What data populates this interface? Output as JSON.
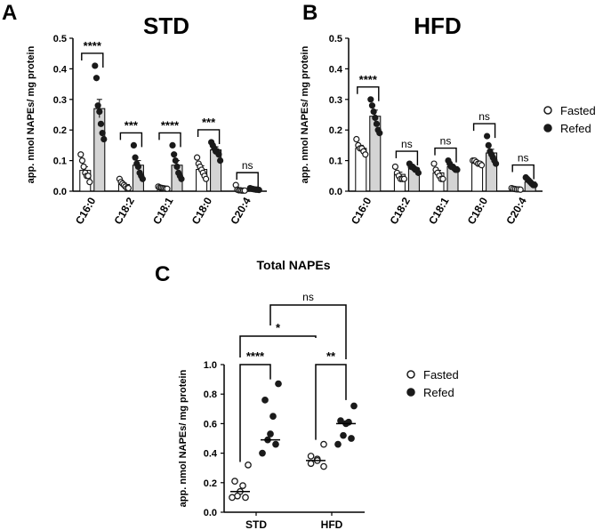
{
  "panels": [
    {
      "letter": "A"
    },
    {
      "letter": "B"
    },
    {
      "letter": "C"
    }
  ],
  "chart_data": [
    {
      "type": "bar",
      "panel": "A",
      "title": "STD",
      "ylabel": "app. nmol NAPEs/ mg protein",
      "xlabel": "",
      "ylim": [
        0,
        0.5
      ],
      "yticks": [
        "0.0",
        "0.1",
        "0.2",
        "0.3",
        "0.4",
        "0.5"
      ],
      "categories": [
        "C16:0",
        "C18:2",
        "C18:1",
        "C18:0",
        "C20:4"
      ],
      "series": [
        {
          "name": "Fasted",
          "values": [
            0.068,
            0.022,
            0.011,
            0.071,
            0.004
          ],
          "sem": [
            0.012,
            0.005,
            0.002,
            0.012,
            0.001
          ],
          "points": [
            [
              0.12,
              0.1,
              0.08,
              0.06,
              0.05,
              0.05,
              0.03
            ],
            [
              0.04,
              0.03,
              0.025,
              0.02,
              0.015,
              0.01,
              0.01
            ],
            [
              0.015,
              0.012,
              0.011,
              0.01,
              0.009,
              0.008,
              0.008
            ],
            [
              0.11,
              0.09,
              0.08,
              0.07,
              0.06,
              0.05,
              0.04
            ],
            [
              0.02,
              0.005,
              0.003,
              0.003,
              0.002,
              0.002,
              0.002
            ]
          ]
        },
        {
          "name": "Refed",
          "values": [
            0.27,
            0.085,
            0.085,
            0.135,
            0.006
          ],
          "sem": [
            0.03,
            0.015,
            0.015,
            0.01,
            0.001
          ],
          "points": [
            [
              0.41,
              0.37,
              0.28,
              0.26,
              0.22,
              0.19,
              0.17
            ],
            [
              0.15,
              0.11,
              0.09,
              0.08,
              0.06,
              0.05,
              0.04
            ],
            [
              0.15,
              0.12,
              0.1,
              0.08,
              0.06,
              0.05,
              0.04
            ],
            [
              0.16,
              0.15,
              0.14,
              0.13,
              0.13,
              0.12,
              0.1
            ],
            [
              0.01,
              0.008,
              0.007,
              0.006,
              0.005,
              0.005,
              0.004
            ]
          ]
        }
      ],
      "significance": [
        "****",
        "***",
        "****",
        "***",
        "ns"
      ]
    },
    {
      "type": "bar",
      "panel": "B",
      "title": "HFD",
      "ylabel": "app. nmol NAPEs/ mg protein",
      "xlabel": "",
      "ylim": [
        0,
        0.5
      ],
      "yticks": [
        "0.0",
        "0.1",
        "0.2",
        "0.3",
        "0.4",
        "0.5"
      ],
      "categories": [
        "C16:0",
        "C18:2",
        "C18:1",
        "C18:0",
        "C20:4"
      ],
      "series": [
        {
          "name": "Fasted",
          "values": [
            0.14,
            0.055,
            0.06,
            0.095,
            0.007
          ],
          "sem": [
            0.01,
            0.007,
            0.008,
            0.004,
            0.001
          ],
          "points": [
            [
              0.17,
              0.15,
              0.14,
              0.14,
              0.13,
              0.12
            ],
            [
              0.08,
              0.06,
              0.05,
              0.04,
              0.04,
              0.04
            ],
            [
              0.09,
              0.07,
              0.06,
              0.05,
              0.04,
              0.04
            ],
            [
              0.1,
              0.1,
              0.095,
              0.09,
              0.09,
              0.085
            ],
            [
              0.01,
              0.008,
              0.007,
              0.006,
              0.006,
              0.005
            ]
          ]
        },
        {
          "name": "Refed",
          "values": [
            0.245,
            0.075,
            0.08,
            0.125,
            0.03
          ],
          "sem": [
            0.02,
            0.005,
            0.006,
            0.012,
            0.003
          ],
          "points": [
            [
              0.3,
              0.28,
              0.26,
              0.24,
              0.22,
              0.2,
              0.19
            ],
            [
              0.09,
              0.08,
              0.08,
              0.075,
              0.07,
              0.07,
              0.06
            ],
            [
              0.1,
              0.09,
              0.08,
              0.08,
              0.075,
              0.07,
              0.07
            ],
            [
              0.18,
              0.15,
              0.13,
              0.12,
              0.11,
              0.1,
              0.09
            ],
            [
              0.045,
              0.04,
              0.035,
              0.03,
              0.025,
              0.02,
              0.02
            ]
          ]
        }
      ],
      "significance": [
        "****",
        "ns",
        "ns",
        "ns",
        "ns"
      ],
      "legend": {
        "position": "right",
        "entries": [
          "Fasted",
          "Refed"
        ]
      }
    },
    {
      "type": "scatter",
      "panel": "C",
      "title": "Total NAPEs",
      "ylabel": "app. nmol NAPEs/ mg protein",
      "xlabel": "",
      "ylim": [
        0,
        1.0
      ],
      "yticks": [
        "0.0",
        "0.2",
        "0.4",
        "0.6",
        "0.8",
        "1.0"
      ],
      "categories": [
        "STD",
        "HFD"
      ],
      "series": [
        {
          "name": "Fasted",
          "points": [
            [
              0.32,
              0.21,
              0.18,
              0.14,
              0.11,
              0.1,
              0.1
            ],
            [
              0.46,
              0.38,
              0.36,
              0.35,
              0.33,
              0.31
            ]
          ],
          "median": [
            0.14,
            0.35
          ]
        },
        {
          "name": "Refed",
          "points": [
            [
              0.87,
              0.76,
              0.65,
              0.53,
              0.49,
              0.46,
              0.4
            ],
            [
              0.72,
              0.62,
              0.61,
              0.6,
              0.52,
              0.5,
              0.46
            ]
          ],
          "median": [
            0.49,
            0.6
          ]
        }
      ],
      "comparisons": [
        {
          "label": "****",
          "between": "STD Fasted vs STD Refed"
        },
        {
          "label": "**",
          "between": "HFD Fasted vs HFD Refed"
        },
        {
          "label": "*",
          "between": "STD Fasted vs HFD Fasted"
        },
        {
          "label": "ns",
          "between": "STD Refed vs HFD Refed"
        }
      ],
      "legend": {
        "position": "right",
        "entries": [
          "Fasted",
          "Refed"
        ]
      }
    }
  ]
}
